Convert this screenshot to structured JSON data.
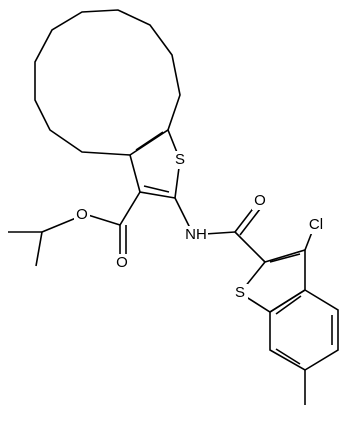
{
  "atoms": [
    {
      "label": "S"
    },
    {
      "label": "O"
    },
    {
      "label": "O"
    },
    {
      "label": "NH"
    },
    {
      "label": "O"
    },
    {
      "label": "S"
    },
    {
      "label": "Cl"
    }
  ]
}
